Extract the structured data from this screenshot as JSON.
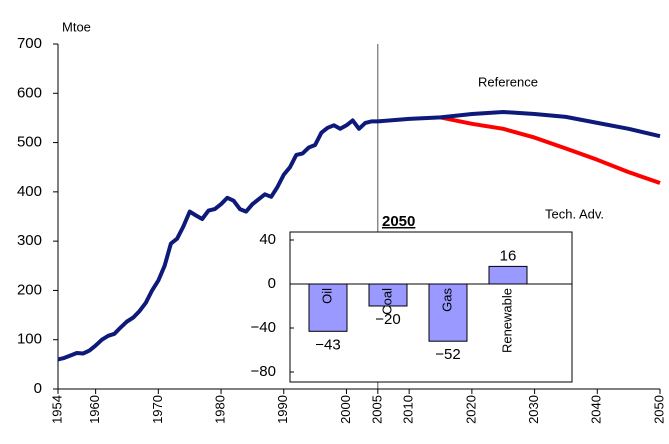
{
  "chart_data": [
    {
      "type": "line",
      "y_label": "Mtoe",
      "x": [
        1954,
        1955,
        1956,
        1957,
        1958,
        1959,
        1960,
        1961,
        1962,
        1963,
        1964,
        1965,
        1966,
        1967,
        1968,
        1969,
        1970,
        1971,
        1972,
        1973,
        1974,
        1975,
        1976,
        1977,
        1978,
        1979,
        1980,
        1981,
        1982,
        1983,
        1984,
        1985,
        1986,
        1987,
        1988,
        1989,
        1990,
        1991,
        1992,
        1993,
        1994,
        1995,
        1996,
        1997,
        1998,
        1999,
        2000,
        2001,
        2002,
        2003,
        2004,
        2005,
        2010,
        2015,
        2020,
        2025,
        2030,
        2035,
        2040,
        2045,
        2050
      ],
      "series": [
        {
          "name": "Tech. Adv.",
          "color": "#ff0000",
          "values": [
            null,
            null,
            null,
            null,
            null,
            null,
            null,
            null,
            null,
            null,
            null,
            null,
            null,
            null,
            null,
            null,
            null,
            null,
            null,
            null,
            null,
            null,
            null,
            null,
            null,
            null,
            null,
            null,
            null,
            null,
            null,
            null,
            null,
            null,
            null,
            null,
            null,
            null,
            null,
            null,
            null,
            null,
            null,
            null,
            null,
            null,
            null,
            null,
            null,
            null,
            null,
            null,
            null,
            551,
            538,
            528,
            510,
            488,
            465,
            440,
            418
          ]
        },
        {
          "name": "Reference",
          "color": "#0d1a7a",
          "values": [
            60,
            63,
            68,
            73,
            72,
            78,
            88,
            100,
            108,
            112,
            125,
            137,
            145,
            158,
            175,
            200,
            220,
            250,
            295,
            305,
            330,
            360,
            352,
            345,
            362,
            365,
            375,
            388,
            382,
            365,
            360,
            375,
            385,
            395,
            390,
            410,
            435,
            450,
            475,
            478,
            490,
            495,
            520,
            530,
            535,
            528,
            535,
            545,
            528,
            540,
            543,
            543,
            548,
            551,
            558,
            562,
            558,
            552,
            540,
            528,
            513
          ]
        }
      ],
      "xlim": [
        1954,
        2050
      ],
      "xticks": [
        1954,
        1960,
        1970,
        1980,
        1990,
        2000,
        2005,
        2010,
        2020,
        2030,
        2040,
        2050
      ],
      "ylim": [
        0,
        700
      ],
      "yticks": [
        0,
        100,
        200,
        300,
        400,
        500,
        600,
        700
      ],
      "vline": 2005
    },
    {
      "type": "bar",
      "title": "2050",
      "categories": [
        "Oil",
        "Coal",
        "Gas",
        "Renewable"
      ],
      "values": [
        -43,
        -20,
        -52,
        16
      ],
      "value_labels": [
        "−43",
        "−20",
        "−52",
        "16"
      ],
      "color": "#9999ff",
      "ylim": [
        -80,
        40
      ],
      "yticks": [
        40,
        0,
        {
          "value": -40,
          "label": "−40"
        },
        {
          "value": -80,
          "label": "−80"
        }
      ]
    }
  ]
}
